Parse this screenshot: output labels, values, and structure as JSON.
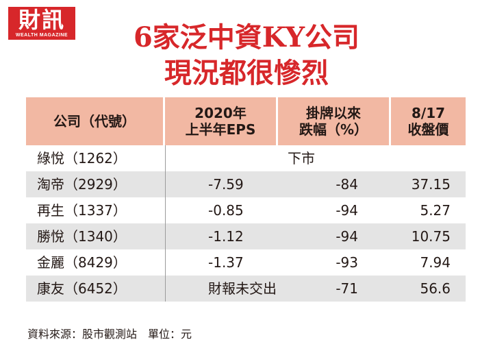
{
  "logo": {
    "chinese": "財訊",
    "english": "WEALTH MAGAZINE"
  },
  "title": {
    "line1": "6家泛中資KY公司",
    "line2": "現況都很慘烈"
  },
  "table": {
    "headers": {
      "company": "公司（代號）",
      "eps_line1": "2020年",
      "eps_line2": "上半年EPS",
      "change_line1": "掛牌以來",
      "change_line2": "跌幅（%）",
      "price_line1": "8/17",
      "price_line2": "收盤價"
    },
    "rows": [
      {
        "company": "綠悅（1262）",
        "status": "下市"
      },
      {
        "company": "淘帝（2929）",
        "eps": "-7.59",
        "change": "-84",
        "price": "37.15"
      },
      {
        "company": "再生（1337）",
        "eps": "-0.85",
        "change": "-94",
        "price": "5.27"
      },
      {
        "company": "勝悅（1340）",
        "eps": "-1.12",
        "change": "-94",
        "price": "10.75"
      },
      {
        "company": "金麗（8429）",
        "eps": "-1.37",
        "change": "-93",
        "price": "7.94"
      },
      {
        "company": "康友（6452）",
        "eps": "財報未交出",
        "change": "-71",
        "price": "56.6"
      }
    ]
  },
  "source": "資料來源：股市觀測站　單位：元"
}
